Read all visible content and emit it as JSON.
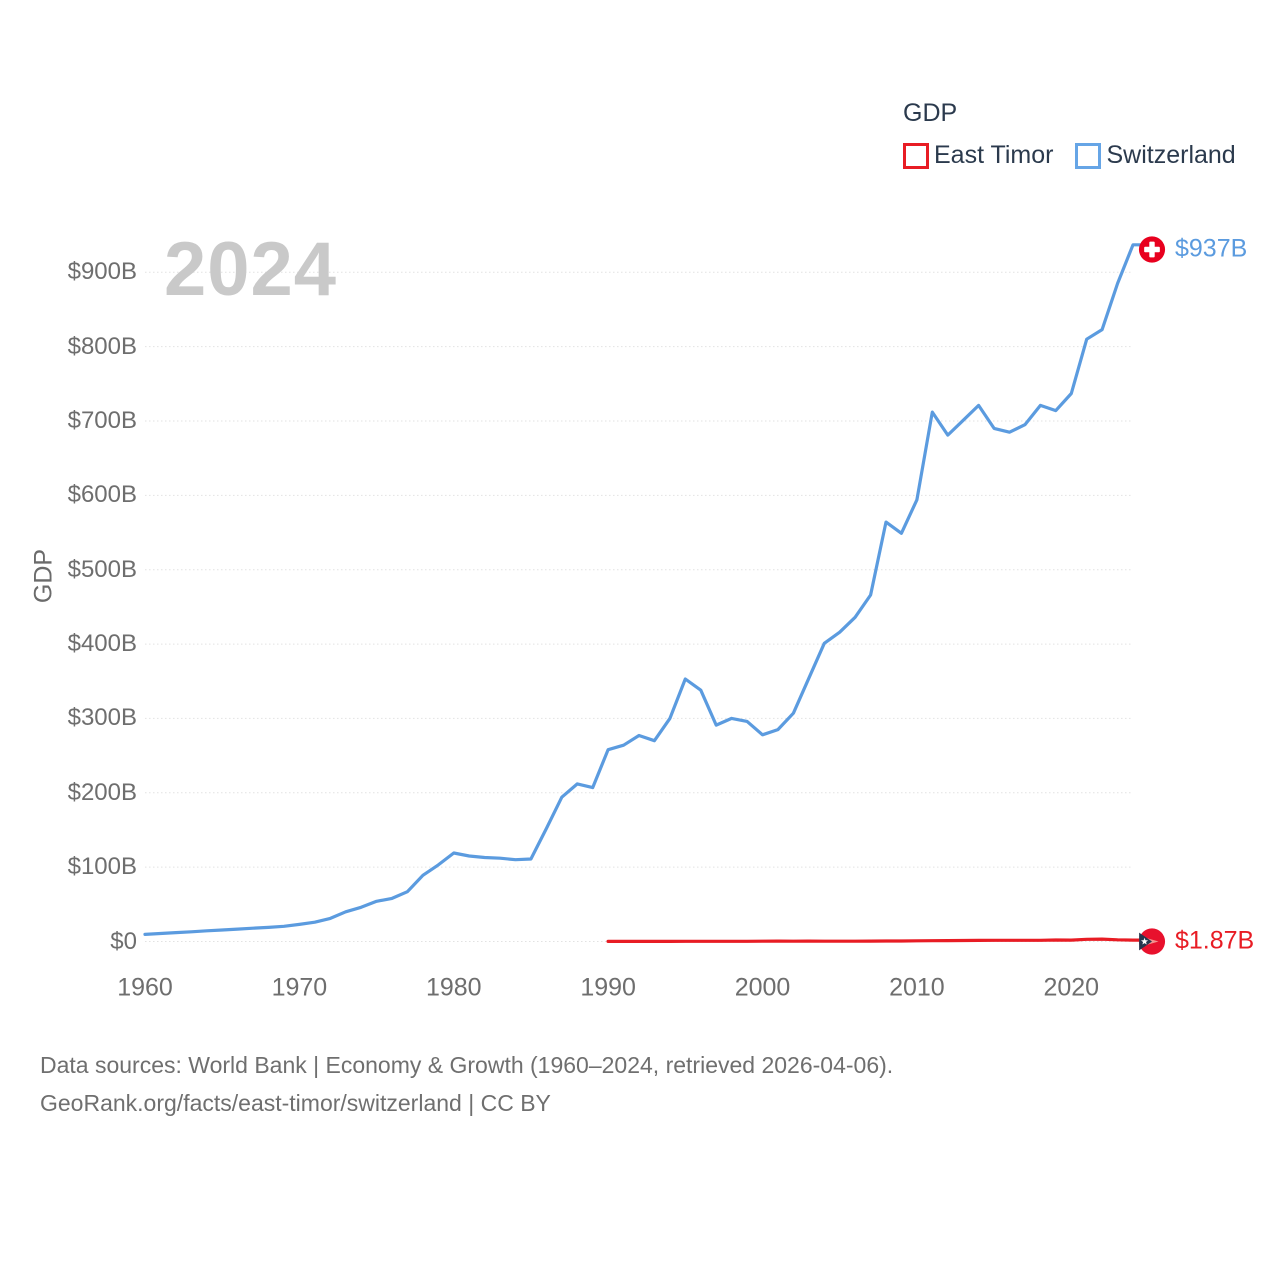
{
  "legend": {
    "title": "GDP",
    "items": [
      {
        "label": "East Timor",
        "color": "#e81c24"
      },
      {
        "label": "Switzerland",
        "color": "#66a5e6"
      }
    ]
  },
  "watermark_year": "2024",
  "y_axis_title": "GDP",
  "footer": {
    "line1": "Data sources: World Bank | Economy & Growth (1960–2024, retrieved 2026-04-06).",
    "line2": "GeoRank.org/facts/east-timor/switzerland | CC BY"
  },
  "chart_data": {
    "type": "line",
    "title": "GDP",
    "xlabel": "",
    "ylabel": "GDP",
    "xlim": [
      1960,
      2024
    ],
    "ylim": [
      0,
      950
    ],
    "grid": "horizontal-dotted",
    "legend_position": "top-right",
    "x_ticks": [
      1960,
      1970,
      1980,
      1990,
      2000,
      2010,
      2020
    ],
    "y_ticks": [
      {
        "value": 0,
        "label": "$0"
      },
      {
        "value": 100,
        "label": "$100B"
      },
      {
        "value": 200,
        "label": "$200B"
      },
      {
        "value": 300,
        "label": "$300B"
      },
      {
        "value": 400,
        "label": "$400B"
      },
      {
        "value": 500,
        "label": "$500B"
      },
      {
        "value": 600,
        "label": "$600B"
      },
      {
        "value": 700,
        "label": "$700B"
      },
      {
        "value": 800,
        "label": "$800B"
      },
      {
        "value": 900,
        "label": "$900B"
      }
    ],
    "unit": "USD billions",
    "series": [
      {
        "name": "East Timor",
        "color": "#e81c24",
        "end_label": "$1.87B",
        "end_value_billions": 1.87,
        "x": [
          1990,
          1991,
          1992,
          1993,
          1994,
          1995,
          1996,
          1997,
          1998,
          1999,
          2000,
          2001,
          2002,
          2003,
          2004,
          2005,
          2006,
          2007,
          2008,
          2009,
          2010,
          2011,
          2012,
          2013,
          2014,
          2015,
          2016,
          2017,
          2018,
          2019,
          2020,
          2021,
          2022,
          2023,
          2024
        ],
        "values": [
          0.14,
          0.15,
          0.16,
          0.18,
          0.2,
          0.31,
          0.33,
          0.32,
          0.3,
          0.27,
          0.37,
          0.48,
          0.47,
          0.5,
          0.44,
          0.46,
          0.45,
          0.54,
          0.65,
          0.72,
          0.88,
          1.12,
          1.24,
          1.41,
          1.45,
          1.59,
          1.65,
          1.62,
          1.56,
          2.02,
          1.9,
          3.0,
          3.2,
          2.26,
          1.87
        ]
      },
      {
        "name": "Switzerland",
        "color": "#5b9bdf",
        "end_label": "$937B",
        "end_value_billions": 937,
        "x": [
          1960,
          1961,
          1962,
          1963,
          1964,
          1965,
          1966,
          1967,
          1968,
          1969,
          1970,
          1971,
          1972,
          1973,
          1974,
          1975,
          1976,
          1977,
          1978,
          1979,
          1980,
          1981,
          1982,
          1983,
          1984,
          1985,
          1986,
          1987,
          1988,
          1989,
          1990,
          1991,
          1992,
          1993,
          1994,
          1995,
          1996,
          1997,
          1998,
          1999,
          2000,
          2001,
          2002,
          2003,
          2004,
          2005,
          2006,
          2007,
          2008,
          2009,
          2010,
          2011,
          2012,
          2013,
          2014,
          2015,
          2016,
          2017,
          2018,
          2019,
          2020,
          2021,
          2022,
          2023,
          2024
        ],
        "values": [
          9.5,
          10.7,
          12,
          13.1,
          14.4,
          15.5,
          16.7,
          17.9,
          19,
          20.4,
          23,
          26,
          31,
          40,
          46,
          54,
          58,
          67,
          89,
          103,
          119,
          115,
          113,
          112,
          110,
          111,
          152,
          194,
          212,
          207,
          258,
          264,
          277,
          270,
          300,
          353,
          338,
          291,
          300,
          296,
          278,
          285,
          307,
          354,
          401,
          416,
          436,
          466,
          564,
          549,
          594,
          712,
          681,
          701,
          721,
          690,
          685,
          695,
          721,
          714,
          737,
          810,
          823,
          885,
          937
        ]
      }
    ]
  }
}
